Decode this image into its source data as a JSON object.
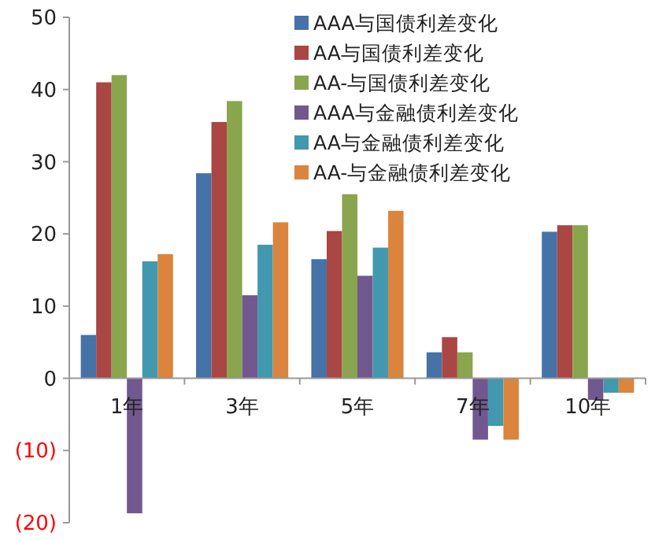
{
  "chart_data": {
    "type": "bar",
    "categories": [
      "1年",
      "3年",
      "5年",
      "7年",
      "10年"
    ],
    "series": [
      {
        "name": "AAA与国债利差变化",
        "color": "#4572a7",
        "values": [
          6,
          28.4,
          16.5,
          3.6,
          20.3
        ]
      },
      {
        "name": "AA与国债利差变化",
        "color": "#aa4643",
        "values": [
          41,
          35.5,
          20.4,
          5.7,
          21.2
        ]
      },
      {
        "name": "AA-与国债利差变化",
        "color": "#89a54e",
        "values": [
          42,
          38.4,
          25.5,
          3.6,
          21.2
        ]
      },
      {
        "name": "AAA与金融债利差变化",
        "color": "#71588f",
        "values": [
          -18.7,
          11.5,
          14.2,
          -8.5,
          -3
        ]
      },
      {
        "name": "AA与金融债利差变化",
        "color": "#4198af",
        "values": [
          16.2,
          18.5,
          18.1,
          -6.6,
          -2
        ]
      },
      {
        "name": "AA-与金融债利差变化",
        "color": "#db843d",
        "values": [
          17.2,
          21.6,
          23.2,
          -8.5,
          -2
        ]
      }
    ],
    "ylim": [
      -20,
      50
    ],
    "yticks": [
      {
        "value": -20,
        "label": "(20)"
      },
      {
        "value": -10,
        "label": "(10)"
      },
      0,
      10,
      20,
      30,
      40,
      50
    ],
    "grid": false,
    "legend": "top right"
  }
}
